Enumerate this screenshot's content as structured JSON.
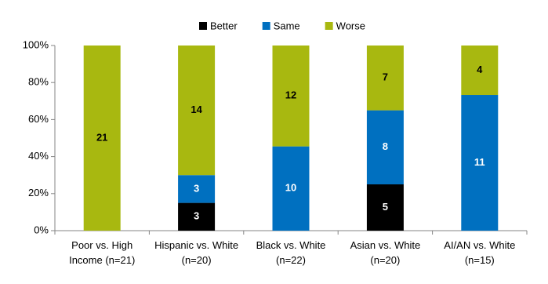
{
  "chart_data": {
    "type": "stacked_bar",
    "categories": [
      "Poor vs. High Income (n=21)",
      "Hispanic vs. White (n=20)",
      "Black vs. White (n=22)",
      "Asian vs. White (n=20)",
      "AI/AN vs. White (n=15)"
    ],
    "series": [
      {
        "name": "Better",
        "color": "#000000",
        "values": [
          null,
          15,
          null,
          25,
          null
        ],
        "counts": [
          null,
          3,
          null,
          5,
          null
        ]
      },
      {
        "name": "Same",
        "color": "#0070c0",
        "values": [
          null,
          15,
          45.5,
          40,
          73.3
        ],
        "counts": [
          null,
          3,
          10,
          8,
          11
        ]
      },
      {
        "name": "Worse",
        "color": "#a8b810",
        "values": [
          100,
          70,
          54.5,
          35,
          26.7
        ],
        "counts": [
          21,
          14,
          12,
          7,
          4
        ]
      }
    ],
    "ylim": [
      0,
      100
    ],
    "yticks": [
      {
        "value": 0,
        "label": "0%"
      },
      {
        "value": 20,
        "label": "20%"
      },
      {
        "value": 40,
        "label": "40%"
      },
      {
        "value": 60,
        "label": "60%"
      },
      {
        "value": 80,
        "label": "80%"
      },
      {
        "value": 100,
        "label": "100%"
      }
    ],
    "legend": "top",
    "grid": false
  }
}
